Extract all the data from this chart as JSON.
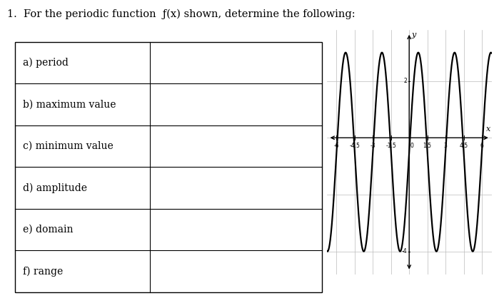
{
  "title_text": "1.  For the periodic function  ƒ(x) shown, determine the following:",
  "table_rows": [
    "a) period",
    "b) maximum value",
    "c) minimum value",
    "d) amplitude",
    "e) domain",
    "f) range"
  ],
  "graph": {
    "x_ticks": [
      -6,
      -4.5,
      -3,
      -1.5,
      1.5,
      3,
      4.5,
      6
    ],
    "x_tick_labels": [
      "-6",
      "-4.5",
      "-3",
      "-1.5",
      "1.5",
      "3",
      "4.5",
      "6"
    ],
    "y_tick_pos": [
      2,
      -4
    ],
    "y_tick_labels": [
      "2",
      "-4"
    ],
    "xlim": [
      -6.8,
      6.8
    ],
    "ylim": [
      -4.8,
      3.8
    ],
    "period": 3,
    "amplitude": 3.5,
    "vertical_shift": -0.5,
    "x_label": "x",
    "y_label": "y",
    "curve_color": "#000000",
    "grid_color": "#bbbbbb",
    "bg_color": "#ffffff"
  }
}
